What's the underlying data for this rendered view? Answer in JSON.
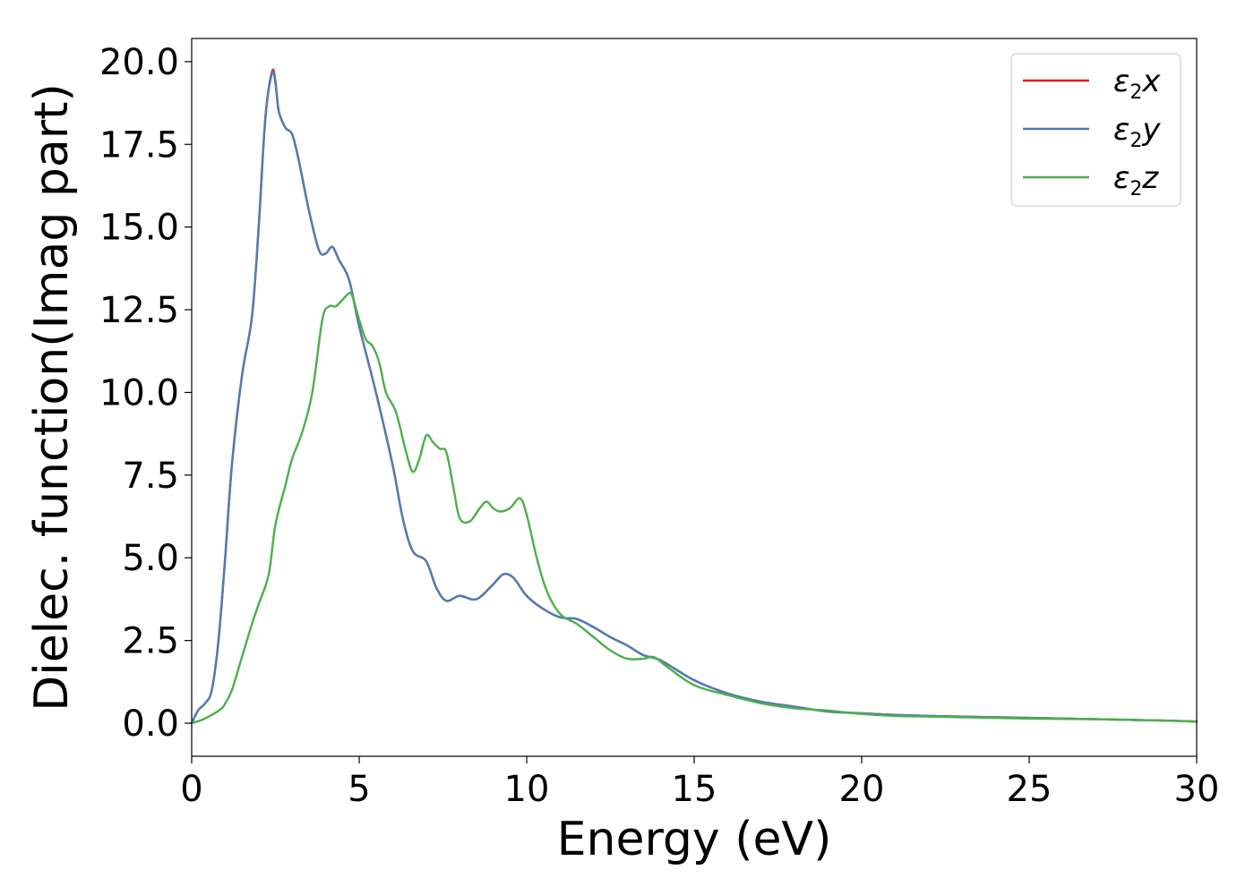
{
  "chart_data": {
    "type": "line",
    "xlabel": "Energy (eV)",
    "ylabel": "Dielec. function(Imag part)",
    "xlim": [
      0,
      30
    ],
    "ylim": [
      -1.0,
      20.7
    ],
    "x_ticks": [
      0,
      5,
      10,
      15,
      20,
      25,
      30
    ],
    "x_tick_labels": [
      "0",
      "5",
      "10",
      "15",
      "20",
      "25",
      "30"
    ],
    "y_ticks": [
      0,
      2.5,
      5,
      7.5,
      10,
      12.5,
      15,
      17.5,
      20
    ],
    "y_tick_labels": [
      "0.0",
      "2.5",
      "5.0",
      "7.5",
      "10.0",
      "12.5",
      "15.0",
      "17.5",
      "20.0"
    ],
    "grid": false,
    "legend_position": "top-right",
    "series": [
      {
        "name": "ε2x",
        "legend_base": "ε",
        "legend_sub": "2",
        "legend_var": "x",
        "color": "#e41a1c",
        "x": [
          0,
          0.2,
          0.4,
          0.6,
          0.8,
          1.0,
          1.2,
          1.5,
          1.8,
          2.0,
          2.2,
          2.4,
          2.5,
          2.6,
          2.8,
          3.0,
          3.2,
          3.5,
          3.8,
          4.0,
          4.2,
          4.4,
          4.7,
          5.0,
          5.5,
          6.0,
          6.3,
          6.6,
          7.0,
          7.3,
          7.6,
          8.0,
          8.5,
          9.0,
          9.3,
          9.6,
          10.0,
          10.5,
          11.0,
          11.5,
          12.0,
          12.5,
          13.0,
          13.5,
          14.0,
          15.0,
          16.0,
          17.0,
          18.0,
          19.0,
          20.0,
          21.0,
          22.0,
          23.0,
          24.0,
          25.0,
          26.0,
          27.0,
          28.0,
          29.0,
          30.0
        ],
        "y": [
          0.0,
          0.4,
          0.6,
          1.0,
          2.5,
          5.0,
          7.8,
          10.5,
          12.3,
          15.0,
          18.3,
          19.7,
          19.4,
          18.5,
          18.0,
          17.8,
          17.0,
          15.5,
          14.3,
          14.2,
          14.4,
          14.0,
          13.4,
          12.0,
          10.0,
          7.8,
          6.2,
          5.2,
          4.9,
          4.1,
          3.7,
          3.85,
          3.75,
          4.2,
          4.5,
          4.4,
          3.85,
          3.45,
          3.2,
          3.15,
          2.9,
          2.6,
          2.35,
          2.05,
          1.9,
          1.3,
          0.9,
          0.65,
          0.5,
          0.35,
          0.3,
          0.25,
          0.22,
          0.2,
          0.18,
          0.16,
          0.14,
          0.12,
          0.1,
          0.08,
          0.05
        ]
      },
      {
        "name": "ε2y",
        "legend_base": "ε",
        "legend_sub": "2",
        "legend_var": "y",
        "color": "#4a7fb5",
        "x": [
          0,
          0.2,
          0.4,
          0.6,
          0.8,
          1.0,
          1.2,
          1.5,
          1.8,
          2.0,
          2.2,
          2.4,
          2.5,
          2.6,
          2.8,
          3.0,
          3.2,
          3.5,
          3.8,
          4.0,
          4.2,
          4.4,
          4.7,
          5.0,
          5.5,
          6.0,
          6.3,
          6.6,
          7.0,
          7.3,
          7.6,
          8.0,
          8.5,
          9.0,
          9.3,
          9.6,
          10.0,
          10.5,
          11.0,
          11.5,
          12.0,
          12.5,
          13.0,
          13.5,
          14.0,
          15.0,
          16.0,
          17.0,
          18.0,
          19.0,
          20.0,
          21.0,
          22.0,
          23.0,
          24.0,
          25.0,
          26.0,
          27.0,
          28.0,
          29.0,
          30.0
        ],
        "y": [
          0.0,
          0.4,
          0.6,
          1.0,
          2.5,
          5.0,
          7.8,
          10.5,
          12.3,
          15.0,
          18.3,
          19.65,
          19.35,
          18.5,
          18.0,
          17.8,
          17.0,
          15.5,
          14.3,
          14.2,
          14.4,
          14.0,
          13.4,
          12.0,
          10.0,
          7.8,
          6.2,
          5.2,
          4.9,
          4.1,
          3.7,
          3.85,
          3.75,
          4.2,
          4.5,
          4.4,
          3.85,
          3.45,
          3.2,
          3.15,
          2.9,
          2.6,
          2.35,
          2.05,
          1.9,
          1.3,
          0.9,
          0.65,
          0.5,
          0.35,
          0.3,
          0.25,
          0.22,
          0.2,
          0.18,
          0.16,
          0.14,
          0.12,
          0.1,
          0.08,
          0.05
        ]
      },
      {
        "name": "ε2z",
        "legend_base": "ε",
        "legend_sub": "2",
        "legend_var": "z",
        "color": "#4daf4a",
        "x": [
          0,
          0.3,
          0.6,
          0.9,
          1.0,
          1.2,
          1.5,
          1.8,
          2.0,
          2.3,
          2.5,
          2.8,
          3.0,
          3.3,
          3.6,
          3.9,
          4.1,
          4.3,
          4.5,
          4.7,
          4.8,
          5.0,
          5.2,
          5.4,
          5.6,
          5.8,
          6.1,
          6.4,
          6.6,
          6.8,
          7.0,
          7.2,
          7.4,
          7.6,
          7.8,
          8.0,
          8.3,
          8.6,
          8.8,
          9.0,
          9.2,
          9.5,
          9.8,
          10.0,
          10.3,
          10.6,
          11.0,
          11.5,
          12.0,
          12.5,
          13.0,
          13.5,
          13.8,
          14.2,
          15.0,
          16.0,
          17.0,
          18.0,
          19.0,
          20.0,
          21.0,
          22.0,
          23.0,
          24.0,
          25.0,
          26.0,
          27.0,
          28.0,
          29.0,
          30.0
        ],
        "y": [
          0.0,
          0.1,
          0.25,
          0.45,
          0.6,
          1.0,
          2.0,
          3.0,
          3.6,
          4.5,
          6.0,
          7.2,
          8.0,
          8.8,
          10.0,
          12.2,
          12.6,
          12.6,
          12.8,
          13.0,
          12.9,
          12.2,
          11.6,
          11.4,
          10.9,
          10.0,
          9.4,
          8.2,
          7.6,
          8.0,
          8.7,
          8.5,
          8.3,
          8.2,
          7.2,
          6.2,
          6.1,
          6.5,
          6.7,
          6.5,
          6.4,
          6.5,
          6.8,
          6.3,
          5.0,
          4.0,
          3.3,
          3.0,
          2.6,
          2.2,
          1.95,
          1.95,
          2.0,
          1.7,
          1.15,
          0.85,
          0.6,
          0.45,
          0.38,
          0.28,
          0.22,
          0.2,
          0.18,
          0.16,
          0.14,
          0.13,
          0.12,
          0.1,
          0.08,
          0.05
        ]
      }
    ]
  }
}
